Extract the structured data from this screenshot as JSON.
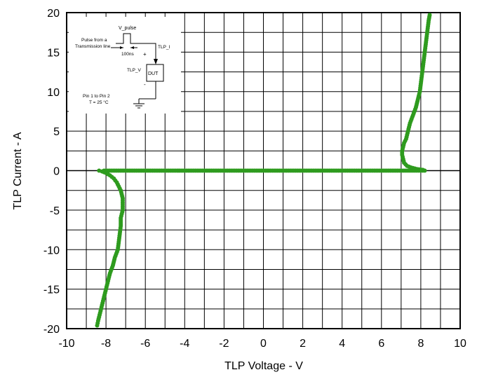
{
  "chart_data": {
    "type": "scatter",
    "title": "",
    "xlabel": "TLP Voltage - V",
    "ylabel": "TLP Current - A",
    "xlim": [
      -10,
      10
    ],
    "ylim": [
      -20,
      20
    ],
    "x_ticks": [
      "-10",
      "-8",
      "-6",
      "-4",
      "-2",
      "0",
      "2",
      "4",
      "6",
      "8",
      "10"
    ],
    "y_ticks": [
      "-20",
      "-15",
      "-10",
      "-5",
      "0",
      "5",
      "10",
      "15",
      "20"
    ],
    "grid": true,
    "legend": "none",
    "series_color": "#2e9b1e",
    "series": [
      {
        "points": [
          [
            -8.1,
            0
          ],
          [
            -7.0,
            0
          ],
          [
            -5.0,
            0
          ],
          [
            -3.0,
            0
          ],
          [
            -1.0,
            0
          ],
          [
            0.0,
            0
          ],
          [
            1.0,
            0
          ],
          [
            3.0,
            0
          ],
          [
            5.0,
            0
          ],
          [
            7.0,
            0
          ],
          [
            7.6,
            0
          ],
          [
            8.2,
            0
          ],
          [
            8.1,
            0.1
          ],
          [
            7.8,
            0.2
          ],
          [
            7.5,
            0.4
          ],
          [
            7.3,
            0.6
          ],
          [
            7.15,
            1.0
          ],
          [
            7.1,
            1.5
          ],
          [
            7.05,
            2.0
          ],
          [
            7.05,
            2.5
          ],
          [
            7.1,
            3.0
          ],
          [
            7.15,
            3.5
          ],
          [
            7.25,
            4.0
          ],
          [
            7.35,
            5.0
          ],
          [
            7.45,
            6.0
          ],
          [
            7.6,
            7.0
          ],
          [
            7.75,
            8.0
          ],
          [
            7.85,
            9.0
          ],
          [
            7.95,
            10.0
          ],
          [
            8.0,
            11.0
          ],
          [
            8.05,
            12.0
          ],
          [
            8.1,
            13.0
          ],
          [
            8.15,
            14.0
          ],
          [
            8.2,
            15.0
          ],
          [
            8.25,
            16.0
          ],
          [
            8.3,
            17.0
          ],
          [
            8.35,
            18.0
          ],
          [
            8.4,
            19.0
          ],
          [
            8.45,
            19.7
          ],
          [
            -8.35,
            0
          ],
          [
            -8.2,
            -0.1
          ],
          [
            -8.0,
            -0.3
          ],
          [
            -7.8,
            -0.6
          ],
          [
            -7.6,
            -1.0
          ],
          [
            -7.45,
            -1.5
          ],
          [
            -7.35,
            -2.0
          ],
          [
            -7.25,
            -2.5
          ],
          [
            -7.2,
            -3.0
          ],
          [
            -7.15,
            -3.5
          ],
          [
            -7.15,
            -4.0
          ],
          [
            -7.15,
            -4.5
          ],
          [
            -7.15,
            -5.0
          ],
          [
            -7.2,
            -5.5
          ],
          [
            -7.25,
            -6.0
          ],
          [
            -7.25,
            -7.0
          ],
          [
            -7.3,
            -8.0
          ],
          [
            -7.35,
            -9.0
          ],
          [
            -7.4,
            -10.0
          ],
          [
            -7.55,
            -11.0
          ],
          [
            -7.65,
            -12.0
          ],
          [
            -7.8,
            -13.0
          ],
          [
            -7.9,
            -14.0
          ],
          [
            -8.0,
            -15.0
          ],
          [
            -8.1,
            -16.0
          ],
          [
            -8.2,
            -17.0
          ],
          [
            -8.3,
            -18.0
          ],
          [
            -8.4,
            -19.0
          ],
          [
            -8.45,
            -19.6
          ]
        ]
      }
    ],
    "inset": {
      "v_pulse": "V_pulse",
      "pulse_from": "Pulse from a",
      "transmission_line": "Transmission line",
      "pulse_width": "100ns",
      "tlp_i": "TLP_I",
      "tlp_v": "TLP_V",
      "dut": "DUT",
      "plus": "+",
      "minus": "-",
      "pin_note": "Pin 1 to Pin 2",
      "temp_note": "T = 25 °C"
    }
  }
}
